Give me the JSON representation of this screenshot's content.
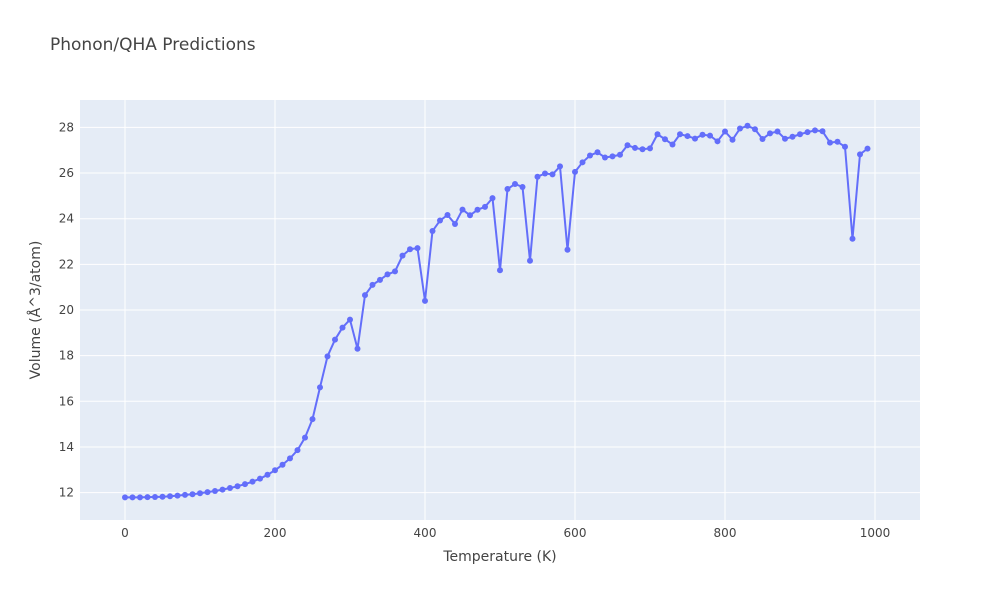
{
  "chart_data": {
    "type": "line",
    "title": "Phonon/QHA Predictions",
    "xlabel": "Temperature (K)",
    "ylabel": "Volume (Å^3/atom)",
    "xlim": [
      -60,
      1060
    ],
    "ylim": [
      10.8,
      29.2
    ],
    "x_ticks": [
      0,
      200,
      400,
      600,
      800,
      1000
    ],
    "y_ticks": [
      12,
      14,
      16,
      18,
      20,
      22,
      24,
      26,
      28
    ],
    "grid": true,
    "legend": "none",
    "colors": {
      "series": "#636efa",
      "plot_bg": "#e5ecf6",
      "grid": "#ffffff"
    },
    "series": [
      {
        "mode": "lines+markers",
        "x": [
          0,
          10,
          20,
          30,
          40,
          50,
          60,
          70,
          80,
          90,
          100,
          110,
          120,
          130,
          140,
          150,
          160,
          170,
          180,
          190,
          200,
          210,
          220,
          230,
          240,
          250,
          260,
          270,
          280,
          290,
          300,
          310,
          320,
          330,
          340,
          350,
          360,
          370,
          380,
          390,
          400,
          410,
          420,
          430,
          440,
          450,
          460,
          470,
          480,
          490,
          500,
          510,
          520,
          530,
          540,
          550,
          560,
          570,
          580,
          590,
          600,
          610,
          620,
          630,
          640,
          650,
          660,
          670,
          680,
          690,
          700,
          710,
          720,
          730,
          740,
          750,
          760,
          770,
          780,
          790,
          800,
          810,
          820,
          830,
          840,
          850,
          860,
          870,
          880,
          890,
          900,
          910,
          920,
          930,
          940,
          950,
          960,
          970,
          980,
          990
        ],
        "y": [
          11.79,
          11.79,
          11.79,
          11.8,
          11.81,
          11.82,
          11.84,
          11.87,
          11.9,
          11.93,
          11.97,
          12.02,
          12.07,
          12.13,
          12.2,
          12.28,
          12.37,
          12.48,
          12.61,
          12.78,
          12.98,
          13.22,
          13.5,
          13.86,
          14.41,
          15.22,
          16.61,
          17.97,
          18.7,
          19.23,
          19.58,
          18.3,
          20.65,
          21.1,
          21.32,
          21.56,
          21.69,
          22.38,
          22.66,
          22.71,
          20.4,
          23.46,
          23.92,
          24.16,
          23.77,
          24.4,
          24.15,
          24.39,
          24.52,
          24.9,
          21.74,
          25.3,
          25.52,
          25.39,
          22.16,
          25.84,
          25.98,
          25.94,
          26.29,
          22.64,
          26.05,
          26.47,
          26.77,
          26.91,
          26.68,
          26.73,
          26.8,
          27.22,
          27.1,
          27.04,
          27.08,
          27.7,
          27.48,
          27.25,
          27.7,
          27.62,
          27.51,
          27.68,
          27.64,
          27.39,
          27.82,
          27.46,
          27.95,
          28.07,
          27.92,
          27.49,
          27.74,
          27.82,
          27.5,
          27.59,
          27.7,
          27.79,
          27.87,
          27.83,
          27.33,
          27.37,
          27.15,
          23.12,
          26.82,
          27.07
        ]
      }
    ]
  }
}
